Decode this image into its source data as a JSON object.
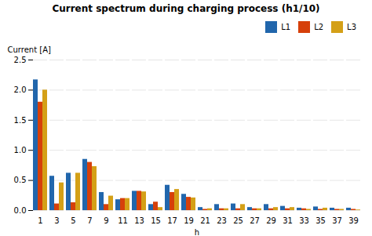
{
  "chart_data": {
    "type": "bar",
    "title": "Current spectrum during charging process (h1/10)",
    "xlabel": "h",
    "ylabel": "Current [A]",
    "categories": [
      "1",
      "3",
      "5",
      "7",
      "9",
      "11",
      "13",
      "15",
      "17",
      "19",
      "21",
      "23",
      "25",
      "27",
      "29",
      "31",
      "33",
      "35",
      "37",
      "39"
    ],
    "series": [
      {
        "name": "L1",
        "color": "#2166ac",
        "values": [
          2.17,
          0.57,
          0.62,
          0.85,
          0.3,
          0.18,
          0.32,
          0.1,
          0.42,
          0.27,
          0.05,
          0.1,
          0.11,
          0.05,
          0.1,
          0.07,
          0.04,
          0.06,
          0.04,
          0.04
        ]
      },
      {
        "name": "L2",
        "color": "#d6400a",
        "values": [
          1.8,
          0.11,
          0.13,
          0.8,
          0.1,
          0.2,
          0.32,
          0.14,
          0.3,
          0.22,
          0.02,
          0.03,
          0.03,
          0.03,
          0.03,
          0.03,
          0.03,
          0.02,
          0.02,
          0.02
        ]
      },
      {
        "name": "L3",
        "color": "#d4a017",
        "values": [
          2.0,
          0.46,
          0.62,
          0.73,
          0.24,
          0.2,
          0.31,
          0.05,
          0.35,
          0.21,
          0.03,
          0.03,
          0.1,
          0.03,
          0.05,
          0.05,
          0.02,
          0.04,
          0.02,
          0.01
        ]
      }
    ],
    "ylim": [
      0,
      2.5
    ],
    "yticks": [
      0,
      0.5,
      1.0,
      1.5,
      2.0,
      2.5
    ],
    "grid": true,
    "legend": "upper right"
  }
}
